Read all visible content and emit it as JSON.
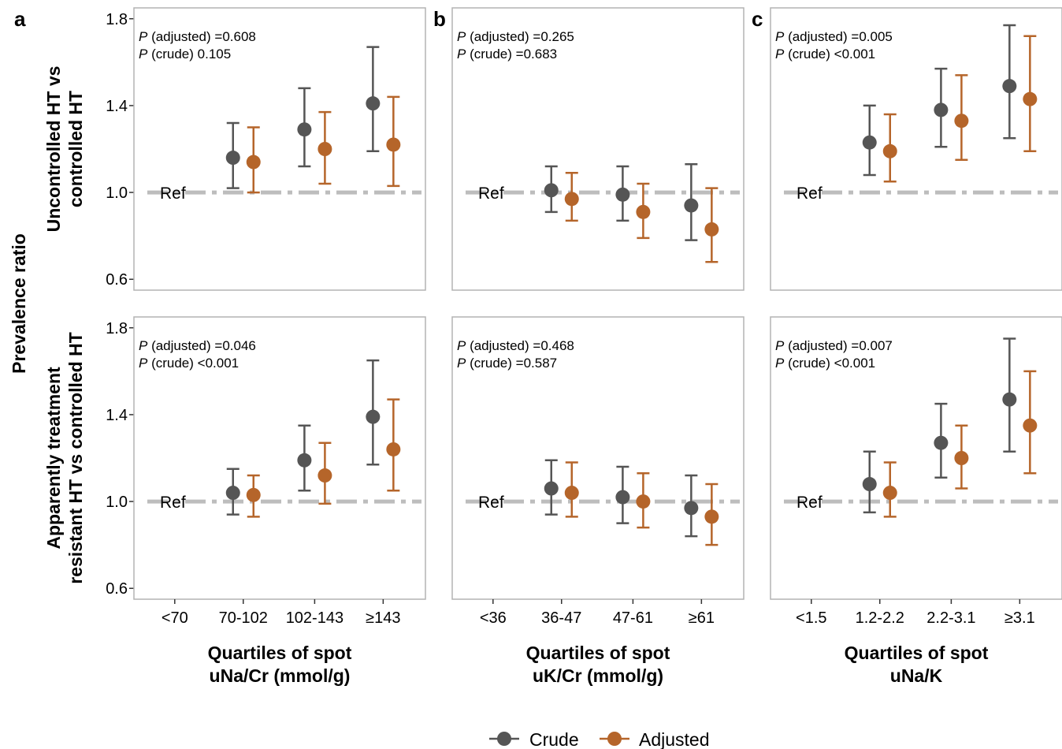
{
  "colors": {
    "crude": "#555555",
    "adjusted": "#B5652A",
    "ref_line": "#BDBDBD",
    "panel_border": "#B3B3B3"
  },
  "y_axis": {
    "label": "Prevalence ratio",
    "ticks": [
      "0.6",
      "1.0",
      "1.4",
      "1.8"
    ],
    "tick_values": [
      0.6,
      1.0,
      1.4,
      1.8
    ],
    "ylim": [
      0.55,
      1.85
    ]
  },
  "rows": [
    {
      "label_lines": [
        "Uncontrolled HT vs",
        "controlled HT"
      ]
    },
    {
      "label_lines": [
        "Apparently treatment",
        "resistant HT vs controlled HT"
      ]
    }
  ],
  "ref_label": "Ref",
  "legend": {
    "items": [
      {
        "name": "Crude",
        "key": "crude"
      },
      {
        "name": "Adjusted",
        "key": "adjusted"
      }
    ]
  },
  "chart_data": {
    "type": "scatter",
    "series_names": [
      "Crude",
      "Adjusted"
    ],
    "columns": [
      {
        "letter": "a",
        "categories": [
          "<70",
          "70-102",
          "102-143",
          "≥143"
        ],
        "xlabel_lines": [
          "Quartiles of spot",
          "uNa/Cr (mmol/g)"
        ],
        "panels": [
          {
            "p_text": [
              {
                "italic": "P",
                "rest": " (adjusted) =0.608"
              },
              {
                "italic": "P",
                "rest": " (crude) 0.105"
              }
            ],
            "crude": [
              null,
              {
                "est": 1.16,
                "lo": 1.02,
                "hi": 1.32
              },
              {
                "est": 1.29,
                "lo": 1.12,
                "hi": 1.48
              },
              {
                "est": 1.41,
                "lo": 1.19,
                "hi": 1.67
              }
            ],
            "adjusted": [
              null,
              {
                "est": 1.14,
                "lo": 1.0,
                "hi": 1.3
              },
              {
                "est": 1.2,
                "lo": 1.04,
                "hi": 1.37
              },
              {
                "est": 1.22,
                "lo": 1.03,
                "hi": 1.44
              }
            ]
          },
          {
            "p_text": [
              {
                "italic": "P",
                "rest": " (adjusted) =0.046"
              },
              {
                "italic": "P",
                "rest": " (crude) <0.001"
              }
            ],
            "crude": [
              null,
              {
                "est": 1.04,
                "lo": 0.94,
                "hi": 1.15
              },
              {
                "est": 1.19,
                "lo": 1.05,
                "hi": 1.35
              },
              {
                "est": 1.39,
                "lo": 1.17,
                "hi": 1.65
              }
            ],
            "adjusted": [
              null,
              {
                "est": 1.03,
                "lo": 0.93,
                "hi": 1.12
              },
              {
                "est": 1.12,
                "lo": 0.99,
                "hi": 1.27
              },
              {
                "est": 1.24,
                "lo": 1.05,
                "hi": 1.47
              }
            ]
          }
        ]
      },
      {
        "letter": "b",
        "categories": [
          "<36",
          "36-47",
          "47-61",
          "≥61"
        ],
        "xlabel_lines": [
          "Quartiles of spot",
          "uK/Cr (mmol/g)"
        ],
        "panels": [
          {
            "p_text": [
              {
                "italic": "P",
                "rest": " (adjusted) =0.265"
              },
              {
                "italic": "P",
                "rest": " (crude) =0.683"
              }
            ],
            "crude": [
              null,
              {
                "est": 1.01,
                "lo": 0.91,
                "hi": 1.12
              },
              {
                "est": 0.99,
                "lo": 0.87,
                "hi": 1.12
              },
              {
                "est": 0.94,
                "lo": 0.78,
                "hi": 1.13
              }
            ],
            "adjusted": [
              null,
              {
                "est": 0.97,
                "lo": 0.87,
                "hi": 1.09
              },
              {
                "est": 0.91,
                "lo": 0.79,
                "hi": 1.04
              },
              {
                "est": 0.83,
                "lo": 0.68,
                "hi": 1.02
              }
            ]
          },
          {
            "p_text": [
              {
                "italic": "P",
                "rest": " (adjusted) =0.468"
              },
              {
                "italic": "P",
                "rest": " (crude) =0.587"
              }
            ],
            "crude": [
              null,
              {
                "est": 1.06,
                "lo": 0.94,
                "hi": 1.19
              },
              {
                "est": 1.02,
                "lo": 0.9,
                "hi": 1.16
              },
              {
                "est": 0.97,
                "lo": 0.84,
                "hi": 1.12
              }
            ],
            "adjusted": [
              null,
              {
                "est": 1.04,
                "lo": 0.93,
                "hi": 1.18
              },
              {
                "est": 1.0,
                "lo": 0.88,
                "hi": 1.13
              },
              {
                "est": 0.93,
                "lo": 0.8,
                "hi": 1.08
              }
            ]
          }
        ]
      },
      {
        "letter": "c",
        "categories": [
          "<1.5",
          "1.2-2.2",
          "2.2-3.1",
          "≥3.1"
        ],
        "xlabel_lines": [
          "Quartiles of spot",
          "uNa/K"
        ],
        "panels": [
          {
            "p_text": [
              {
                "italic": "P",
                "rest": " (adjusted) =0.005"
              },
              {
                "italic": "P",
                "rest": " (crude) <0.001"
              }
            ],
            "crude": [
              null,
              {
                "est": 1.23,
                "lo": 1.08,
                "hi": 1.4
              },
              {
                "est": 1.38,
                "lo": 1.21,
                "hi": 1.57
              },
              {
                "est": 1.49,
                "lo": 1.25,
                "hi": 1.77
              }
            ],
            "adjusted": [
              null,
              {
                "est": 1.19,
                "lo": 1.05,
                "hi": 1.36
              },
              {
                "est": 1.33,
                "lo": 1.15,
                "hi": 1.54
              },
              {
                "est": 1.43,
                "lo": 1.19,
                "hi": 1.72
              }
            ]
          },
          {
            "p_text": [
              {
                "italic": "P",
                "rest": " (adjusted) =0.007"
              },
              {
                "italic": "P",
                "rest": " (crude) <0.001"
              }
            ],
            "crude": [
              null,
              {
                "est": 1.08,
                "lo": 0.95,
                "hi": 1.23
              },
              {
                "est": 1.27,
                "lo": 1.11,
                "hi": 1.45
              },
              {
                "est": 1.47,
                "lo": 1.23,
                "hi": 1.75
              }
            ],
            "adjusted": [
              null,
              {
                "est": 1.04,
                "lo": 0.93,
                "hi": 1.18
              },
              {
                "est": 1.2,
                "lo": 1.06,
                "hi": 1.35
              },
              {
                "est": 1.35,
                "lo": 1.13,
                "hi": 1.6
              }
            ]
          }
        ]
      }
    ]
  }
}
